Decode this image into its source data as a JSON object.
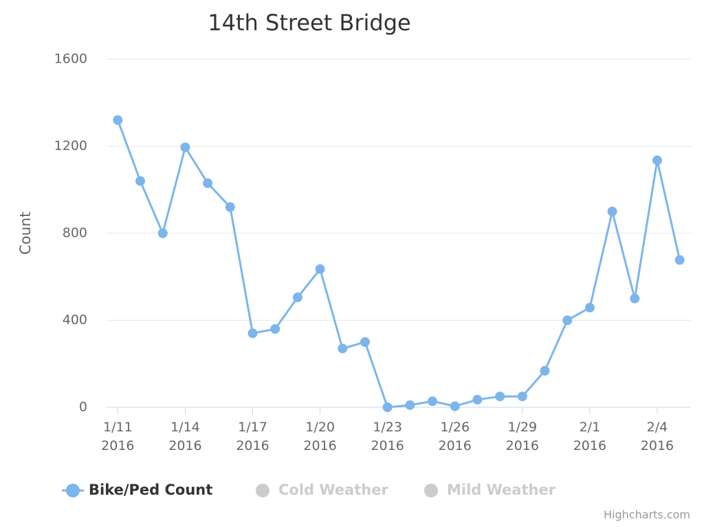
{
  "chart_data": {
    "type": "line",
    "title": "14th Street Bridge",
    "y_axis_label": "Count",
    "credits": "Highcharts.com",
    "x": [
      "2016-01-11",
      "2016-01-12",
      "2016-01-13",
      "2016-01-14",
      "2016-01-15",
      "2016-01-16",
      "2016-01-17",
      "2016-01-18",
      "2016-01-19",
      "2016-01-20",
      "2016-01-21",
      "2016-01-22",
      "2016-01-23",
      "2016-01-24",
      "2016-01-25",
      "2016-01-26",
      "2016-01-27",
      "2016-01-28",
      "2016-01-29",
      "2016-01-30",
      "2016-01-31",
      "2016-02-01",
      "2016-02-02",
      "2016-02-03",
      "2016-02-04",
      "2016-02-05"
    ],
    "series": [
      {
        "name": "Bike/Ped Count",
        "color": "#7cb5ec",
        "visible": true,
        "values": [
          1320,
          1040,
          800,
          1195,
          1030,
          920,
          340,
          360,
          505,
          635,
          270,
          300,
          0,
          10,
          28,
          5,
          35,
          50,
          50,
          168,
          400,
          458,
          900,
          500,
          1135,
          677
        ]
      },
      {
        "name": "Cold Weather",
        "color": "#cccccc",
        "visible": false
      },
      {
        "name": "Mild Weather",
        "color": "#cccccc",
        "visible": false
      }
    ],
    "xlim": [
      "2016-01-10T12:00",
      "2016-02-05T12:00"
    ],
    "xticks": [
      {
        "value": "2016-01-11",
        "label": [
          "1/11",
          "2016"
        ]
      },
      {
        "value": "2016-01-14",
        "label": [
          "1/14",
          "2016"
        ]
      },
      {
        "value": "2016-01-17",
        "label": [
          "1/17",
          "2016"
        ]
      },
      {
        "value": "2016-01-20",
        "label": [
          "1/20",
          "2016"
        ]
      },
      {
        "value": "2016-01-23",
        "label": [
          "1/23",
          "2016"
        ]
      },
      {
        "value": "2016-01-26",
        "label": [
          "1/26",
          "2016"
        ]
      },
      {
        "value": "2016-01-29",
        "label": [
          "1/29",
          "2016"
        ]
      },
      {
        "value": "2016-02-01",
        "label": [
          "2/1",
          "2016"
        ]
      },
      {
        "value": "2016-02-04",
        "label": [
          "2/4",
          "2016"
        ]
      }
    ],
    "ylim": [
      0,
      1600
    ],
    "yticks": [
      0,
      400,
      800,
      1200,
      1600
    ],
    "grid": true,
    "legend": "bottom"
  }
}
